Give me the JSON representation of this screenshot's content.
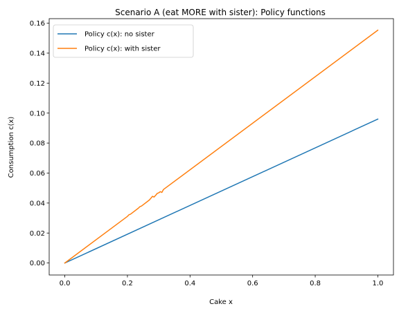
{
  "chart_data": {
    "type": "line",
    "title": "Scenario A (eat MORE with sister): Policy functions",
    "xlabel": "Cake x",
    "ylabel": "Consumption c(x)",
    "xlim": [
      -0.05,
      1.05
    ],
    "ylim": [
      -0.008,
      0.163
    ],
    "xticks": [
      0.0,
      0.2,
      0.4,
      0.6,
      0.8,
      1.0
    ],
    "xtick_labels": [
      "0.0",
      "0.2",
      "0.4",
      "0.6",
      "0.8",
      "1.0"
    ],
    "yticks": [
      0.0,
      0.02,
      0.04,
      0.06,
      0.08,
      0.1,
      0.12,
      0.14,
      0.16
    ],
    "ytick_labels": [
      "0.00",
      "0.02",
      "0.04",
      "0.06",
      "0.08",
      "0.10",
      "0.12",
      "0.14",
      "0.16"
    ],
    "grid": false,
    "legend_position": "top-left",
    "series": [
      {
        "name": "Policy c(x): no sister",
        "color": "#1f77b4",
        "x": [
          0.0,
          1.0
        ],
        "y": [
          0.0,
          0.096
        ]
      },
      {
        "name": "Policy c(x): with sister",
        "color": "#ff7f0e",
        "x": [
          0.0,
          0.2,
          0.205,
          0.21,
          0.235,
          0.24,
          0.245,
          0.27,
          0.275,
          0.28,
          0.285,
          0.29,
          0.295,
          0.3,
          0.305,
          0.31,
          0.315,
          1.0
        ],
        "y": [
          0.0,
          0.0311,
          0.0322,
          0.0326,
          0.0366,
          0.0376,
          0.038,
          0.042,
          0.0432,
          0.0445,
          0.044,
          0.0451,
          0.0464,
          0.0468,
          0.0476,
          0.0471,
          0.049,
          0.1553
        ]
      }
    ]
  }
}
